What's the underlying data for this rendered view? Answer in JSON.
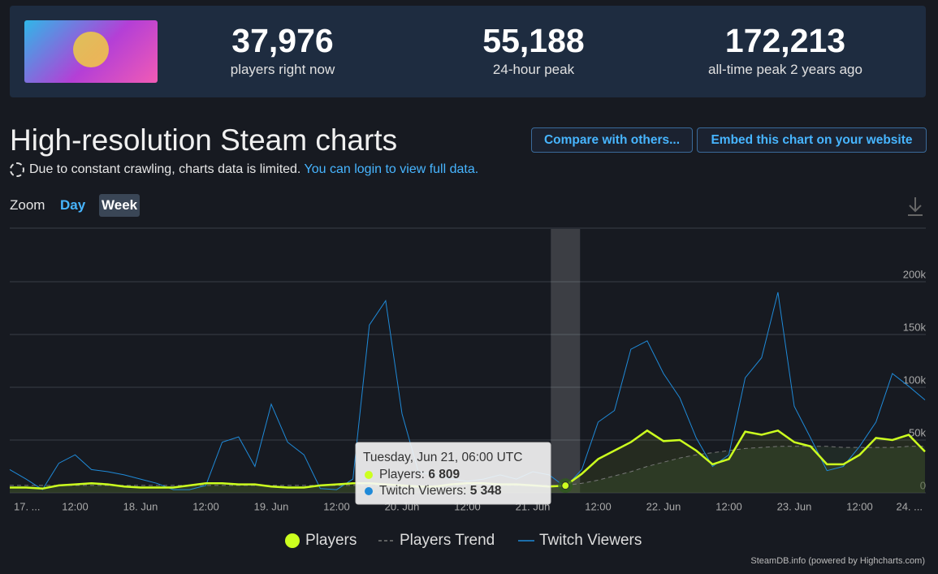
{
  "header": {
    "stats": [
      {
        "value": "37,976",
        "label": "players right now"
      },
      {
        "value": "55,188",
        "label": "24-hour peak"
      },
      {
        "value": "172,213",
        "label": "all-time peak 2 years ago"
      }
    ]
  },
  "title": "High-resolution Steam charts",
  "buttons": [
    "Compare with others...",
    "Embed this chart on your website"
  ],
  "notice": {
    "text": "Due to constant crawling, charts data is limited.",
    "link": "You can login to view full data."
  },
  "zoom": {
    "label": "Zoom",
    "options": [
      "Day",
      "Week"
    ]
  },
  "chart_data": {
    "type": "line",
    "x": [
      0,
      3,
      6,
      9,
      12,
      15,
      18,
      21,
      24,
      27,
      30,
      33,
      36,
      39,
      42,
      45,
      48,
      51,
      54,
      57,
      60,
      63,
      66,
      69,
      72,
      75,
      78,
      81,
      84,
      87,
      90,
      93,
      96,
      99,
      102,
      105,
      108,
      111,
      114,
      117,
      120,
      123,
      126,
      129,
      132,
      135,
      138,
      141,
      144,
      147,
      150,
      153,
      156,
      159,
      162,
      165,
      168
    ],
    "xlim": [
      0,
      168
    ],
    "xticks": [
      {
        "value": 0,
        "label": "17. ..."
      },
      {
        "value": 12,
        "label": "12:00"
      },
      {
        "value": 24,
        "label": "18. Jun"
      },
      {
        "value": 36,
        "label": "12:00"
      },
      {
        "value": 48,
        "label": "19. Jun"
      },
      {
        "value": 60,
        "label": "12:00"
      },
      {
        "value": 72,
        "label": "20. Jun"
      },
      {
        "value": 84,
        "label": "12:00"
      },
      {
        "value": 96,
        "label": "21. Jun"
      },
      {
        "value": 108,
        "label": "12:00"
      },
      {
        "value": 120,
        "label": "22. Jun"
      },
      {
        "value": 132,
        "label": "12:00"
      },
      {
        "value": 144,
        "label": "23. Jun"
      },
      {
        "value": 156,
        "label": "12:00"
      },
      {
        "value": 168,
        "label": "24. ..."
      }
    ],
    "ylim": [
      0,
      250000
    ],
    "yticks": [
      0,
      {
        "value": 50000,
        "label": "50k"
      },
      {
        "value": 100000,
        "label": "100k"
      },
      {
        "value": 150000,
        "label": "150k"
      },
      {
        "value": 200000,
        "label": "200k"
      }
    ],
    "grid": true,
    "series": [
      {
        "name": "Players",
        "color": "#ccff1f",
        "values": [
          5000,
          5000,
          4000,
          7000,
          8000,
          9000,
          8000,
          6000,
          5000,
          5000,
          5000,
          7000,
          9000,
          9000,
          8000,
          8000,
          6000,
          5000,
          5000,
          7000,
          8000,
          9000,
          9000,
          8000,
          7000,
          6000,
          6000,
          8000,
          9000,
          9000,
          8000,
          8000,
          7000,
          6000,
          6809,
          18000,
          32000,
          40000,
          48000,
          59000,
          49000,
          50000,
          40000,
          27000,
          32000,
          58000,
          55000,
          59000,
          48000,
          44000,
          27000,
          27000,
          36000,
          52000,
          50000,
          55000,
          39000
        ]
      },
      {
        "name": "Players Trend",
        "color": "#777777",
        "values": [
          7000,
          7000,
          7000,
          7000,
          7000,
          7000,
          7000,
          7000,
          7000,
          7000,
          7000,
          7000,
          7000,
          7000,
          7000,
          7000,
          7000,
          7000,
          7000,
          7000,
          7000,
          7000,
          7000,
          7000,
          7000,
          7000,
          7000,
          7000,
          7000,
          7000,
          7000,
          7000,
          7000,
          7000,
          7000,
          9000,
          12000,
          16000,
          20000,
          25000,
          29000,
          33000,
          36000,
          38000,
          40000,
          42000,
          43000,
          44000,
          44000,
          44000,
          44000,
          43000,
          43000,
          43000,
          43000,
          44000,
          44000
        ]
      },
      {
        "name": "Twitch Viewers",
        "color": "#1f8ad8",
        "values": [
          22000,
          13000,
          3000,
          28000,
          36000,
          22000,
          20000,
          17000,
          13000,
          9000,
          3000,
          3000,
          7000,
          48000,
          53000,
          25000,
          84000,
          48000,
          36000,
          4000,
          3000,
          13000,
          159000,
          182000,
          75000,
          20000,
          17000,
          13000,
          11000,
          13000,
          17000,
          13000,
          20000,
          17000,
          5348,
          22000,
          67000,
          78000,
          136000,
          144000,
          113000,
          90000,
          52000,
          25000,
          36000,
          109000,
          128000,
          190000,
          82000,
          52000,
          21000,
          25000,
          44000,
          67000,
          113000,
          101000,
          88000
        ]
      }
    ],
    "tooltip": {
      "title": "Tuesday, Jun 21, 06:00 UTC",
      "items": [
        {
          "label": "Players:",
          "value": "6 809"
        },
        {
          "label": "Twitch Viewers:",
          "value": "5 348"
        }
      ]
    },
    "legend": "bottom",
    "credit": "SteamDB.info (powered by Highcharts.com)"
  }
}
